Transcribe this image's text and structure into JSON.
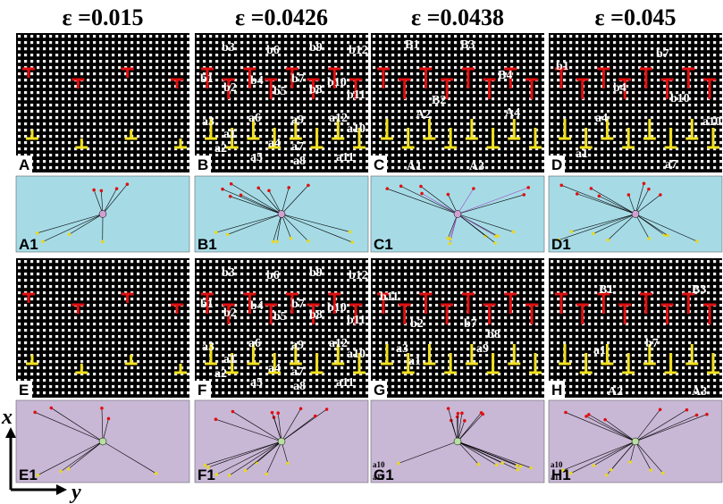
{
  "headers": [
    "ε =0.015",
    "ε =0.0426",
    "ε =0.0438",
    "ε =0.045"
  ],
  "axes": {
    "x": "x",
    "y": "y"
  },
  "panels": [
    {
      "letter": "A",
      "labels": []
    },
    {
      "letter": "B",
      "labels": [
        "b3",
        "b6",
        "b9",
        "b12",
        "b1",
        "b2",
        "b4",
        "b5",
        "b7",
        "b8",
        "b10",
        "b11",
        "a3",
        "a6",
        "a9",
        "a12",
        "a1",
        "a2",
        "a4",
        "a5",
        "a7",
        "a8",
        "a10",
        "a11"
      ]
    },
    {
      "letter": "C",
      "labels": [
        "B1",
        "B3",
        "B2",
        "B4",
        "A2",
        "A4",
        "A1",
        "A3"
      ]
    },
    {
      "letter": "D",
      "labels": [
        "b1",
        "b7",
        "b4",
        "b10",
        "a4",
        "a10",
        "a1",
        "a7"
      ]
    },
    {
      "letter": "A1",
      "labels": []
    },
    {
      "letter": "B1",
      "labels": []
    },
    {
      "letter": "C1",
      "labels": []
    },
    {
      "letter": "D1",
      "labels": []
    },
    {
      "letter": "E",
      "labels": []
    },
    {
      "letter": "F",
      "labels": [
        "b3",
        "b6",
        "b9",
        "b12",
        "b1",
        "b2",
        "b4",
        "b5",
        "b7",
        "b8",
        "b10",
        "b11",
        "a3",
        "a6",
        "a9",
        "a12",
        "a1",
        "a2",
        "a4",
        "a5",
        "a7",
        "a8",
        "a10",
        "a11"
      ]
    },
    {
      "letter": "G",
      "labels": [
        "b11",
        "b2",
        "b7",
        "b8",
        "a3",
        "a1",
        "a9"
      ]
    },
    {
      "letter": "H",
      "labels": [
        "B1",
        "B3",
        "b7",
        "a1",
        "A2",
        "A3"
      ]
    },
    {
      "letter": "E1",
      "labels": []
    },
    {
      "letter": "F1",
      "labels": []
    },
    {
      "letter": "G1",
      "labels": [
        "a10",
        "a11"
      ]
    },
    {
      "letter": "H1",
      "labels": [
        "a10",
        "a11"
      ]
    }
  ]
}
